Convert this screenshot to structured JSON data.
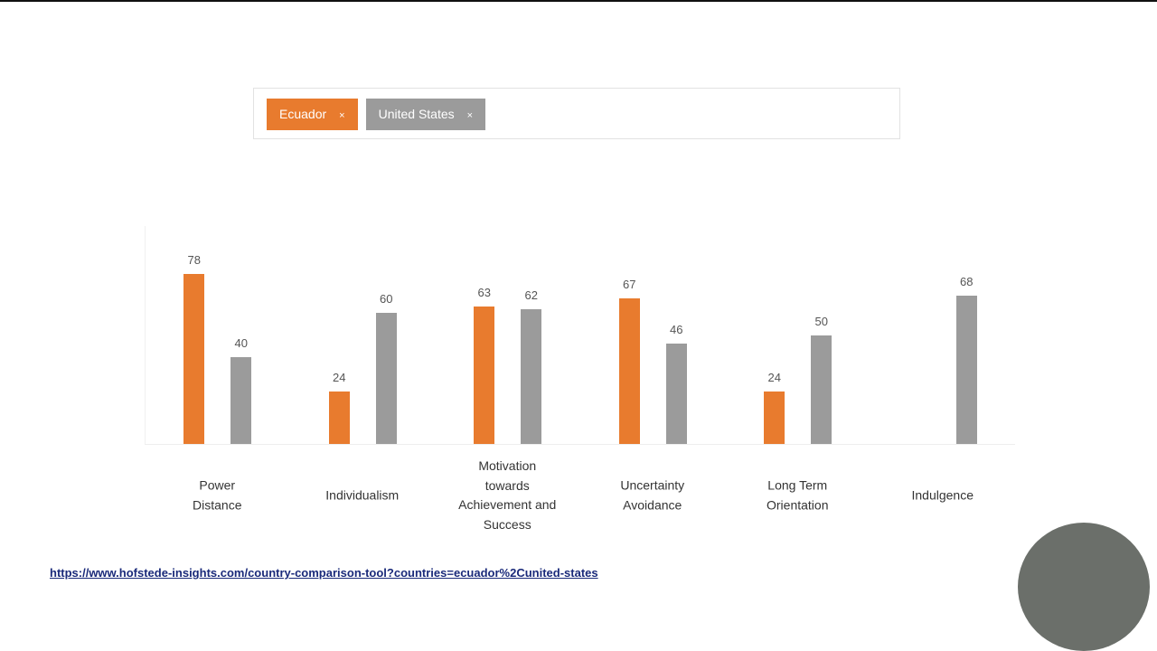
{
  "filters": [
    {
      "label": "Ecuador",
      "close": "×",
      "color": "#e87b2e"
    },
    {
      "label": "United States",
      "close": "×",
      "color": "#9b9b9b"
    }
  ],
  "chart_data": {
    "type": "bar",
    "categories": [
      "Power\nDistance",
      "Individualism",
      "Motivation\ntowards\nAchievement and\nSuccess",
      "Uncertainty\nAvoidance",
      "Long Term\nOrientation",
      "Indulgence"
    ],
    "series": [
      {
        "name": "Ecuador",
        "color": "#e87b2e",
        "values": [
          78,
          24,
          63,
          67,
          24,
          null
        ]
      },
      {
        "name": "United States",
        "color": "#9b9b9b",
        "values": [
          40,
          60,
          62,
          46,
          50,
          68
        ]
      }
    ],
    "ylim": [
      0,
      100
    ]
  },
  "link": "https://www.hofstede-insights.com/country-comparison-tool?countries=ecuador%2Cunited-states"
}
